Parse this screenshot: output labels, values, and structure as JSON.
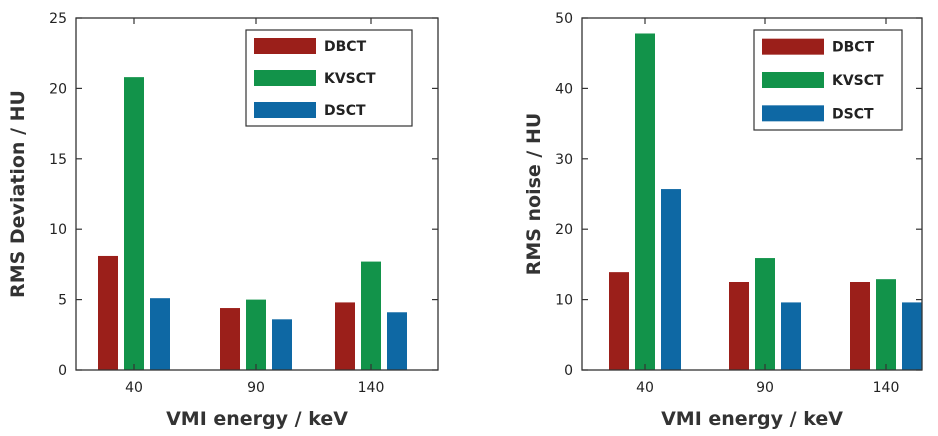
{
  "chart_data": [
    {
      "type": "bar",
      "categories": [
        "40",
        "90",
        "140"
      ],
      "series": [
        {
          "name": "DBCT",
          "color": "#9b1f1a",
          "values": [
            8.1,
            4.4,
            4.8
          ]
        },
        {
          "name": "KVSCT",
          "color": "#12934a",
          "values": [
            20.8,
            5.0,
            7.7
          ]
        },
        {
          "name": "DSCT",
          "color": "#0e68a4",
          "values": [
            5.1,
            3.6,
            4.1
          ]
        }
      ],
      "xlabel": "VMI energy / keV",
      "ylabel": "RMS Deviation / HU",
      "ylim": [
        0,
        25
      ],
      "yticks": [
        0,
        5,
        10,
        15,
        20,
        25
      ],
      "legend_position": "top-right",
      "grid": false
    },
    {
      "type": "bar",
      "categories": [
        "40",
        "90",
        "140"
      ],
      "series": [
        {
          "name": "DBCT",
          "color": "#9b1f1a",
          "values": [
            13.9,
            12.5,
            12.5
          ]
        },
        {
          "name": "KVSCT",
          "color": "#12934a",
          "values": [
            47.8,
            15.9,
            12.9
          ]
        },
        {
          "name": "DSCT",
          "color": "#0e68a4",
          "values": [
            25.7,
            9.6,
            9.6
          ]
        }
      ],
      "xlabel": "VMI energy / keV",
      "ylabel": "RMS noise / HU",
      "ylim": [
        0,
        50
      ],
      "yticks": [
        0,
        10,
        20,
        30,
        40,
        50
      ],
      "legend_position": "top-right",
      "grid": false
    }
  ]
}
